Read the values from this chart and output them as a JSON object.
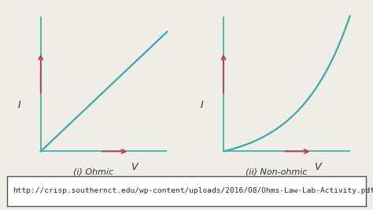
{
  "background_color": "#eeede8",
  "graph_bg": "#ffffff",
  "line_color": "#3aada0",
  "arrow_color": "#c4365a",
  "axis_color": "#3aada0",
  "text_color": "#333333",
  "url_text_color": "#2a2a2a",
  "label_I": "I",
  "label_V": "V",
  "title_ohmic": "(i) Ohmic",
  "title_nonohmic": "(ii) Non-ohmic",
  "url_text": "http://crisp.southernct.edu/wp-content/uploads/2016/08/Ohms-Law-Lab-Activity.pdf",
  "font_size_labels": 8,
  "font_size_url": 6.8,
  "font_size_axis_labels": 9
}
